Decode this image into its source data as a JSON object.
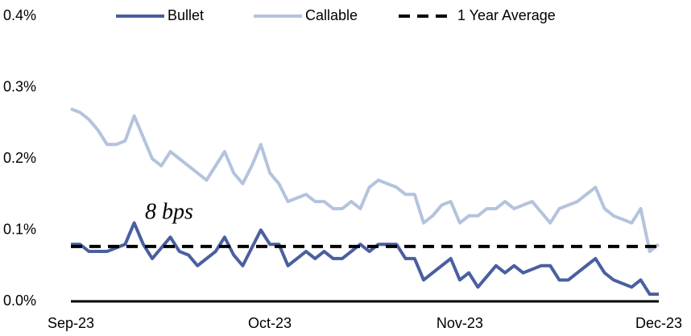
{
  "chart_data": {
    "type": "line",
    "annotation": "8 bps",
    "categories": [
      "Sep-23",
      null,
      null,
      null,
      null,
      null,
      null,
      null,
      null,
      null,
      null,
      null,
      null,
      null,
      null,
      null,
      null,
      null,
      null,
      null,
      null,
      null,
      "Oct-23",
      null,
      null,
      null,
      null,
      null,
      null,
      null,
      null,
      null,
      null,
      null,
      null,
      null,
      null,
      null,
      null,
      null,
      null,
      null,
      null,
      "Nov-23",
      null,
      null,
      null,
      null,
      null,
      null,
      null,
      null,
      null,
      null,
      null,
      null,
      null,
      null,
      null,
      null,
      null,
      null,
      null,
      null,
      null,
      "Dec-23"
    ],
    "series": [
      {
        "name": "Bullet",
        "color": "#4a5fa0",
        "values": [
          0.08,
          0.08,
          0.07,
          0.07,
          0.07,
          0.075,
          0.08,
          0.11,
          0.08,
          0.06,
          0.075,
          0.09,
          0.07,
          0.065,
          0.05,
          0.06,
          0.07,
          0.09,
          0.065,
          0.05,
          0.075,
          0.1,
          0.08,
          0.08,
          0.05,
          0.06,
          0.07,
          0.06,
          0.07,
          0.06,
          0.06,
          0.07,
          0.08,
          0.07,
          0.08,
          0.08,
          0.08,
          0.06,
          0.06,
          0.03,
          0.04,
          0.05,
          0.06,
          0.03,
          0.04,
          0.02,
          0.035,
          0.05,
          0.04,
          0.05,
          0.04,
          0.045,
          0.05,
          0.05,
          0.03,
          0.03,
          0.04,
          0.05,
          0.06,
          0.04,
          0.03,
          0.025,
          0.02,
          0.03,
          0.01,
          0.01
        ]
      },
      {
        "name": "Callable",
        "color": "#b4c3dd",
        "values": [
          0.27,
          0.265,
          0.255,
          0.24,
          0.22,
          0.22,
          0.225,
          0.26,
          0.23,
          0.2,
          0.19,
          0.21,
          0.2,
          0.19,
          0.18,
          0.17,
          0.19,
          0.21,
          0.18,
          0.165,
          0.19,
          0.22,
          0.18,
          0.165,
          0.14,
          0.145,
          0.15,
          0.14,
          0.14,
          0.13,
          0.13,
          0.14,
          0.13,
          0.16,
          0.17,
          0.165,
          0.16,
          0.15,
          0.15,
          0.11,
          0.12,
          0.135,
          0.14,
          0.11,
          0.12,
          0.12,
          0.13,
          0.13,
          0.14,
          0.13,
          0.135,
          0.14,
          0.125,
          0.11,
          0.13,
          0.135,
          0.14,
          0.15,
          0.16,
          0.13,
          0.12,
          0.115,
          0.11,
          0.13,
          0.07,
          0.08
        ]
      }
    ],
    "reference_line": {
      "name": "1 Year Average",
      "value": 0.077,
      "color": "#000000"
    },
    "ylim": [
      0,
      0.4
    ],
    "yticks": [
      {
        "value": 0,
        "label": "0.0%"
      },
      {
        "value": 0.1,
        "label": "0.1%"
      },
      {
        "value": 0.2,
        "label": "0.2%"
      },
      {
        "value": 0.3,
        "label": "0.3%"
      },
      {
        "value": 0.4,
        "label": "0.4%"
      }
    ],
    "grid": false
  }
}
